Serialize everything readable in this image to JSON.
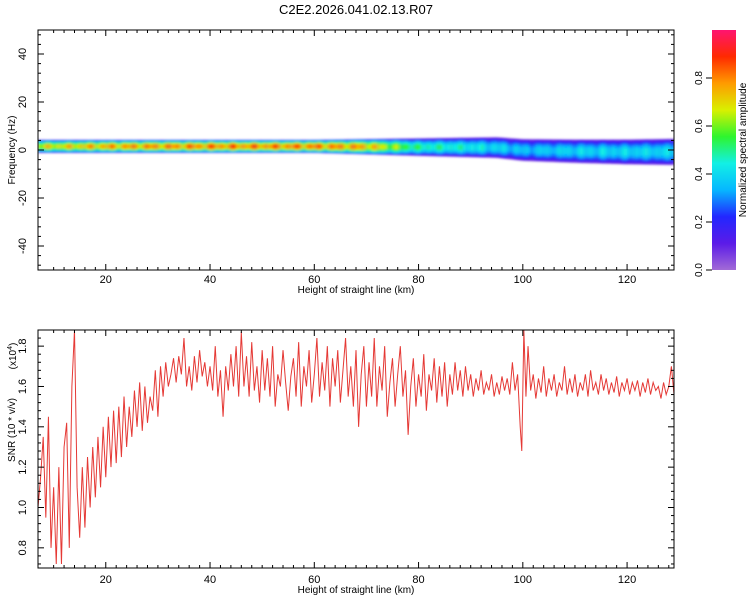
{
  "page": {
    "title": "C2E2.2026.041.02.13.R07"
  },
  "colors": {
    "snr_line": "#e53935",
    "colorbar_stops": [
      "#a26bd6",
      "#5b1be8",
      "#2227ff",
      "#06b7ff",
      "#12f0e5",
      "#2ef52e",
      "#d9f000",
      "#ff9b00",
      "#ff2a00",
      "#ff1470"
    ]
  },
  "chart_data": [
    {
      "type": "heatmap",
      "name": "spectrogram",
      "xlabel": "Height of straight line (km)",
      "ylabel": "Frequency (Hz)",
      "xlim": [
        7,
        129
      ],
      "ylim": [
        -50,
        50
      ],
      "xticks": [
        20,
        40,
        60,
        80,
        100,
        120
      ],
      "yticks": [
        -40,
        -20,
        0,
        20,
        40
      ],
      "colorbar": {
        "label": "Normalized spectral amplitude",
        "range": [
          0.0,
          1.0
        ],
        "ticks": [
          0.0,
          0.2,
          0.4,
          0.6,
          0.8
        ]
      },
      "band": {
        "center_frequency_hz": [
          [
            7,
            1.5
          ],
          [
            20,
            1.5
          ],
          [
            40,
            1.5
          ],
          [
            60,
            1.5
          ],
          [
            80,
            1.2
          ],
          [
            95,
            1.0
          ],
          [
            100,
            0.0
          ],
          [
            110,
            -0.5
          ],
          [
            120,
            -0.8
          ],
          [
            129,
            -0.8
          ]
        ],
        "halfwidth_hz": [
          [
            7,
            3.0
          ],
          [
            40,
            3.0
          ],
          [
            60,
            3.0
          ],
          [
            80,
            4.0
          ],
          [
            100,
            5.0
          ],
          [
            129,
            6.0
          ]
        ],
        "peak_amplitude": [
          [
            7,
            0.75
          ],
          [
            20,
            0.85
          ],
          [
            40,
            0.9
          ],
          [
            60,
            0.9
          ],
          [
            70,
            0.85
          ],
          [
            80,
            0.55
          ],
          [
            90,
            0.5
          ],
          [
            100,
            0.4
          ],
          [
            110,
            0.45
          ],
          [
            120,
            0.45
          ],
          [
            129,
            0.45
          ]
        ]
      }
    },
    {
      "type": "line",
      "name": "snr",
      "xlabel": "Height of straight line (km)",
      "ylabel": "SNR (10 * v/v)",
      "yunit_label": "(x10^4)",
      "xlim": [
        7,
        129
      ],
      "ylim": [
        0.7,
        1.88
      ],
      "xticks": [
        20,
        40,
        60,
        80,
        100,
        120
      ],
      "yticks": [
        0.8,
        1.0,
        1.2,
        1.4,
        1.6,
        1.8
      ],
      "series": [
        {
          "values": [
            [
              7.0,
              1.0
            ],
            [
              7.5,
              1.15
            ],
            [
              8.0,
              1.35
            ],
            [
              8.5,
              0.95
            ],
            [
              9.0,
              1.45
            ],
            [
              9.5,
              0.8
            ],
            [
              10.0,
              1.1
            ],
            [
              10.5,
              0.72
            ],
            [
              11.0,
              1.2
            ],
            [
              11.5,
              0.72
            ],
            [
              12.0,
              1.3
            ],
            [
              12.5,
              1.42
            ],
            [
              13.0,
              0.8
            ],
            [
              13.5,
              1.6
            ],
            [
              14.0,
              1.88
            ],
            [
              14.5,
              1.1
            ],
            [
              15.0,
              0.85
            ],
            [
              15.5,
              1.2
            ],
            [
              16.0,
              0.9
            ],
            [
              16.5,
              1.25
            ],
            [
              17.0,
              1.0
            ],
            [
              17.5,
              1.3
            ],
            [
              18.0,
              1.05
            ],
            [
              18.5,
              1.35
            ],
            [
              19.0,
              1.1
            ],
            [
              19.5,
              1.4
            ],
            [
              20.0,
              1.15
            ],
            [
              20.5,
              1.45
            ],
            [
              21.0,
              1.2
            ],
            [
              21.5,
              1.48
            ],
            [
              22.0,
              1.22
            ],
            [
              22.5,
              1.5
            ],
            [
              23.0,
              1.25
            ],
            [
              23.5,
              1.55
            ],
            [
              24.0,
              1.3
            ],
            [
              24.5,
              1.5
            ],
            [
              25.0,
              1.35
            ],
            [
              25.5,
              1.58
            ],
            [
              26.0,
              1.4
            ],
            [
              26.5,
              1.62
            ],
            [
              27.0,
              1.38
            ],
            [
              27.5,
              1.6
            ],
            [
              28.0,
              1.42
            ],
            [
              28.5,
              1.55
            ],
            [
              29.0,
              1.48
            ],
            [
              29.5,
              1.68
            ],
            [
              30.0,
              1.45
            ],
            [
              30.5,
              1.7
            ],
            [
              31.0,
              1.55
            ],
            [
              31.5,
              1.72
            ],
            [
              32.0,
              1.6
            ],
            [
              32.5,
              1.66
            ],
            [
              33.0,
              1.74
            ],
            [
              33.5,
              1.62
            ],
            [
              34.0,
              1.75
            ],
            [
              34.5,
              1.66
            ],
            [
              35.0,
              1.84
            ],
            [
              35.5,
              1.6
            ],
            [
              36.0,
              1.7
            ],
            [
              36.5,
              1.58
            ],
            [
              37.0,
              1.75
            ],
            [
              37.5,
              1.62
            ],
            [
              38.0,
              1.78
            ],
            [
              38.5,
              1.65
            ],
            [
              39.0,
              1.72
            ],
            [
              39.5,
              1.6
            ],
            [
              40.0,
              1.7
            ],
            [
              40.5,
              1.58
            ],
            [
              41.0,
              1.8
            ],
            [
              41.5,
              1.55
            ],
            [
              42.0,
              1.68
            ],
            [
              42.5,
              1.45
            ],
            [
              43.0,
              1.7
            ],
            [
              43.5,
              1.58
            ],
            [
              44.0,
              1.76
            ],
            [
              44.5,
              1.6
            ],
            [
              45.0,
              1.8
            ],
            [
              45.5,
              1.55
            ],
            [
              46.0,
              1.87
            ],
            [
              46.5,
              1.6
            ],
            [
              47.0,
              1.75
            ],
            [
              47.5,
              1.55
            ],
            [
              48.0,
              1.82
            ],
            [
              48.5,
              1.58
            ],
            [
              49.0,
              1.7
            ],
            [
              49.5,
              1.52
            ],
            [
              50.0,
              1.78
            ],
            [
              50.5,
              1.58
            ],
            [
              51.0,
              1.74
            ],
            [
              51.5,
              1.55
            ],
            [
              52.0,
              1.8
            ],
            [
              52.5,
              1.5
            ],
            [
              53.0,
              1.66
            ],
            [
              53.5,
              1.6
            ],
            [
              54.0,
              1.78
            ],
            [
              54.5,
              1.62
            ],
            [
              55.0,
              1.48
            ],
            [
              55.5,
              1.65
            ],
            [
              56.0,
              1.74
            ],
            [
              56.5,
              1.55
            ],
            [
              57.0,
              1.82
            ],
            [
              57.5,
              1.5
            ],
            [
              58.0,
              1.7
            ],
            [
              58.5,
              1.6
            ],
            [
              59.0,
              1.78
            ],
            [
              59.5,
              1.52
            ],
            [
              60.0,
              1.66
            ],
            [
              60.5,
              1.84
            ],
            [
              61.0,
              1.55
            ],
            [
              61.5,
              1.72
            ],
            [
              62.0,
              1.58
            ],
            [
              62.5,
              1.8
            ],
            [
              63.0,
              1.5
            ],
            [
              63.5,
              1.74
            ],
            [
              64.0,
              1.6
            ],
            [
              64.5,
              1.78
            ],
            [
              65.0,
              1.52
            ],
            [
              65.5,
              1.68
            ],
            [
              66.0,
              1.84
            ],
            [
              66.5,
              1.55
            ],
            [
              67.0,
              1.7
            ],
            [
              67.5,
              1.5
            ],
            [
              68.0,
              1.78
            ],
            [
              68.5,
              1.4
            ],
            [
              69.0,
              1.66
            ],
            [
              69.5,
              1.8
            ],
            [
              70.0,
              1.5
            ],
            [
              70.5,
              1.72
            ],
            [
              71.0,
              1.55
            ],
            [
              71.5,
              1.84
            ],
            [
              72.0,
              1.5
            ],
            [
              72.5,
              1.7
            ],
            [
              73.0,
              1.58
            ],
            [
              73.5,
              1.8
            ],
            [
              74.0,
              1.45
            ],
            [
              74.5,
              1.62
            ],
            [
              75.0,
              1.74
            ],
            [
              75.5,
              1.5
            ],
            [
              76.0,
              1.66
            ],
            [
              76.5,
              1.8
            ],
            [
              77.0,
              1.55
            ],
            [
              77.5,
              1.68
            ],
            [
              78.0,
              1.36
            ],
            [
              78.5,
              1.6
            ],
            [
              79.0,
              1.74
            ],
            [
              79.5,
              1.5
            ],
            [
              80.0,
              1.66
            ],
            [
              80.5,
              1.55
            ],
            [
              81.0,
              1.76
            ],
            [
              81.5,
              1.48
            ],
            [
              82.0,
              1.66
            ],
            [
              82.5,
              1.58
            ],
            [
              83.0,
              1.74
            ],
            [
              83.5,
              1.52
            ],
            [
              84.0,
              1.7
            ],
            [
              84.5,
              1.55
            ],
            [
              85.0,
              1.72
            ],
            [
              85.5,
              1.5
            ],
            [
              86.0,
              1.66
            ],
            [
              86.5,
              1.56
            ],
            [
              87.0,
              1.72
            ],
            [
              87.5,
              1.58
            ],
            [
              88.0,
              1.68
            ],
            [
              88.5,
              1.55
            ],
            [
              89.0,
              1.7
            ],
            [
              89.5,
              1.58
            ],
            [
              90.0,
              1.66
            ],
            [
              90.5,
              1.55
            ],
            [
              91.0,
              1.64
            ],
            [
              91.5,
              1.58
            ],
            [
              92.0,
              1.68
            ],
            [
              92.5,
              1.56
            ],
            [
              93.0,
              1.62
            ],
            [
              93.5,
              1.58
            ],
            [
              94.0,
              1.66
            ],
            [
              94.5,
              1.55
            ],
            [
              95.0,
              1.62
            ],
            [
              95.5,
              1.56
            ],
            [
              96.0,
              1.65
            ],
            [
              96.5,
              1.58
            ],
            [
              97.0,
              1.64
            ],
            [
              97.5,
              1.56
            ],
            [
              98.0,
              1.72
            ],
            [
              98.5,
              1.58
            ],
            [
              99.0,
              1.66
            ],
            [
              99.5,
              1.4
            ],
            [
              99.8,
              1.28
            ],
            [
              100.2,
              1.88
            ],
            [
              100.6,
              1.55
            ],
            [
              101.0,
              1.8
            ],
            [
              101.5,
              1.58
            ],
            [
              102.0,
              1.66
            ],
            [
              102.5,
              1.54
            ],
            [
              103.0,
              1.64
            ],
            [
              103.5,
              1.57
            ],
            [
              104.0,
              1.7
            ],
            [
              104.5,
              1.55
            ],
            [
              105.0,
              1.64
            ],
            [
              105.5,
              1.58
            ],
            [
              106.0,
              1.66
            ],
            [
              106.5,
              1.55
            ],
            [
              107.0,
              1.62
            ],
            [
              107.5,
              1.58
            ],
            [
              108.0,
              1.7
            ],
            [
              108.5,
              1.56
            ],
            [
              109.0,
              1.64
            ],
            [
              109.5,
              1.57
            ],
            [
              110.0,
              1.66
            ],
            [
              110.5,
              1.55
            ],
            [
              111.0,
              1.62
            ],
            [
              111.5,
              1.58
            ],
            [
              112.0,
              1.66
            ],
            [
              112.5,
              1.55
            ],
            [
              113.0,
              1.68
            ],
            [
              113.5,
              1.58
            ],
            [
              114.0,
              1.62
            ],
            [
              114.5,
              1.56
            ],
            [
              115.0,
              1.66
            ],
            [
              115.5,
              1.58
            ],
            [
              116.0,
              1.64
            ],
            [
              116.5,
              1.56
            ],
            [
              117.0,
              1.62
            ],
            [
              117.5,
              1.57
            ],
            [
              118.0,
              1.65
            ],
            [
              118.5,
              1.55
            ],
            [
              119.0,
              1.62
            ],
            [
              119.5,
              1.58
            ],
            [
              120.0,
              1.64
            ],
            [
              120.5,
              1.56
            ],
            [
              121.0,
              1.62
            ],
            [
              121.5,
              1.58
            ],
            [
              122.0,
              1.63
            ],
            [
              122.5,
              1.55
            ],
            [
              123.0,
              1.62
            ],
            [
              123.5,
              1.57
            ],
            [
              124.0,
              1.64
            ],
            [
              124.5,
              1.56
            ],
            [
              125.0,
              1.62
            ],
            [
              125.5,
              1.58
            ],
            [
              126.0,
              1.6
            ],
            [
              126.5,
              1.54
            ],
            [
              127.0,
              1.62
            ],
            [
              127.5,
              1.56
            ],
            [
              128.0,
              1.6
            ],
            [
              128.5,
              1.7
            ],
            [
              129.0,
              1.56
            ]
          ]
        }
      ]
    }
  ]
}
